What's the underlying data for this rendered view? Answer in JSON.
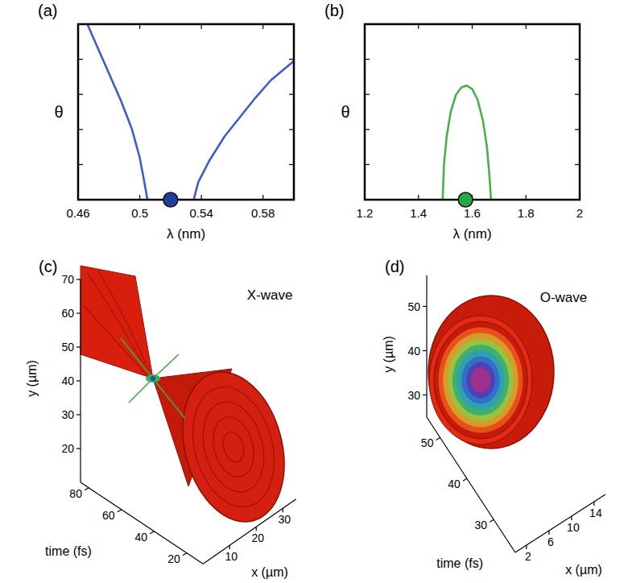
{
  "chart_data": [
    {
      "type": "line",
      "panel_label": "(a)",
      "x_label": "λ (nm)",
      "y_label": "θ",
      "xlim": [
        0.46,
        0.6
      ],
      "xticks": [
        0.46,
        0.5,
        0.54,
        0.58
      ],
      "ylim": [
        0,
        1
      ],
      "yticks": [
        0.2,
        0.4,
        0.6,
        0.8
      ],
      "tick_labels": "x",
      "series": [
        {
          "color": "#3d5fc4",
          "x": [
            0.466,
            0.472,
            0.48,
            0.488,
            0.495,
            0.5,
            0.503,
            0.505
          ],
          "values": [
            1,
            0.88,
            0.72,
            0.56,
            0.4,
            0.24,
            0.1,
            0
          ]
        },
        {
          "color": "#3d5fc4",
          "x": [
            0.535,
            0.538,
            0.545,
            0.555,
            0.565,
            0.575,
            0.585,
            0.6
          ],
          "values": [
            0,
            0.1,
            0.22,
            0.36,
            0.47,
            0.58,
            0.68,
            0.79
          ]
        },
        {
          "type": "scatter",
          "marker": "circle",
          "color": "#1f3f9f",
          "x": [
            0.52
          ],
          "values": [
            0
          ]
        }
      ]
    },
    {
      "type": "line",
      "panel_label": "(b)",
      "x_label": "λ (nm)",
      "y_label": "θ",
      "xlim": [
        1.2,
        2
      ],
      "xticks": [
        1.2,
        1.4,
        1.6,
        1.8,
        2
      ],
      "ylim": [
        0,
        1
      ],
      "yticks": [
        0.2,
        0.4,
        0.6,
        0.8
      ],
      "tick_labels": "x",
      "series": [
        {
          "color": "#4cae4c",
          "x": [
            1.49,
            1.495,
            1.505,
            1.52,
            1.54,
            1.56,
            1.58,
            1.6,
            1.62,
            1.64,
            1.655,
            1.665,
            1.67
          ],
          "values": [
            0,
            0.2,
            0.36,
            0.5,
            0.6,
            0.64,
            0.65,
            0.63,
            0.57,
            0.45,
            0.3,
            0.12,
            0
          ]
        },
        {
          "type": "scatter",
          "marker": "circle",
          "color": "#22a844",
          "x": [
            1.575
          ],
          "values": [
            0
          ]
        }
      ]
    },
    {
      "type": "isosurface",
      "panel_label": "(c)",
      "title": "X-wave",
      "x_label": "x (µm)",
      "y_label": "y (µm)",
      "z_label": "time (fs)",
      "xlim": [
        0,
        35
      ],
      "xticks": [
        10,
        20,
        30
      ],
      "ylim": [
        10,
        70
      ],
      "yticks": [
        20,
        30,
        40,
        50,
        60,
        70
      ],
      "zlim": [
        10,
        85
      ],
      "zticks": [
        20,
        40,
        60,
        80
      ]
    },
    {
      "type": "isosurface",
      "panel_label": "(d)",
      "title": "O-wave",
      "x_label": "x (µm)",
      "y_label": "y (µm)",
      "z_label": "time (fs)",
      "xlim": [
        0,
        16
      ],
      "xticks": [
        2,
        6,
        10,
        14
      ],
      "ylim": [
        25,
        57
      ],
      "yticks": [
        30,
        40,
        50
      ],
      "zlim": [
        22,
        55
      ],
      "zticks": [
        30,
        40,
        50
      ]
    }
  ]
}
